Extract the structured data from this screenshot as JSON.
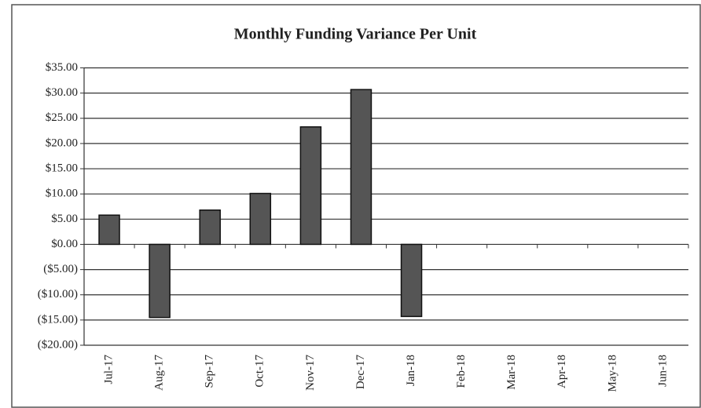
{
  "chart_data": {
    "type": "bar",
    "title": "Monthly Funding Variance Per Unit",
    "categories": [
      "Jul-17",
      "Aug-17",
      "Sep-17",
      "Oct-17",
      "Nov-17",
      "Dec-17",
      "Jan-18",
      "Feb-18",
      "Mar-18",
      "Apr-18",
      "May-18",
      "Jun-18"
    ],
    "values": [
      5.8,
      -14.5,
      6.8,
      10.1,
      23.3,
      30.7,
      -14.3,
      null,
      null,
      null,
      null,
      null
    ],
    "color": "#555555",
    "ylim": [
      -20,
      35
    ],
    "yticks": [
      {
        "value": -20,
        "label": "($20.00)"
      },
      {
        "value": -15,
        "label": "($15.00)"
      },
      {
        "value": -10,
        "label": "($10.00)"
      },
      {
        "value": -5,
        "label": "($5.00)"
      },
      {
        "value": 0,
        "label": "$0.00"
      },
      {
        "value": 5,
        "label": "$5.00"
      },
      {
        "value": 10,
        "label": "$10.00"
      },
      {
        "value": 15,
        "label": "$15.00"
      },
      {
        "value": 20,
        "label": "$20.00"
      },
      {
        "value": 25,
        "label": "$25.00"
      },
      {
        "value": 30,
        "label": "$30.00"
      },
      {
        "value": 35,
        "label": "$35.00"
      }
    ],
    "grid": true
  }
}
